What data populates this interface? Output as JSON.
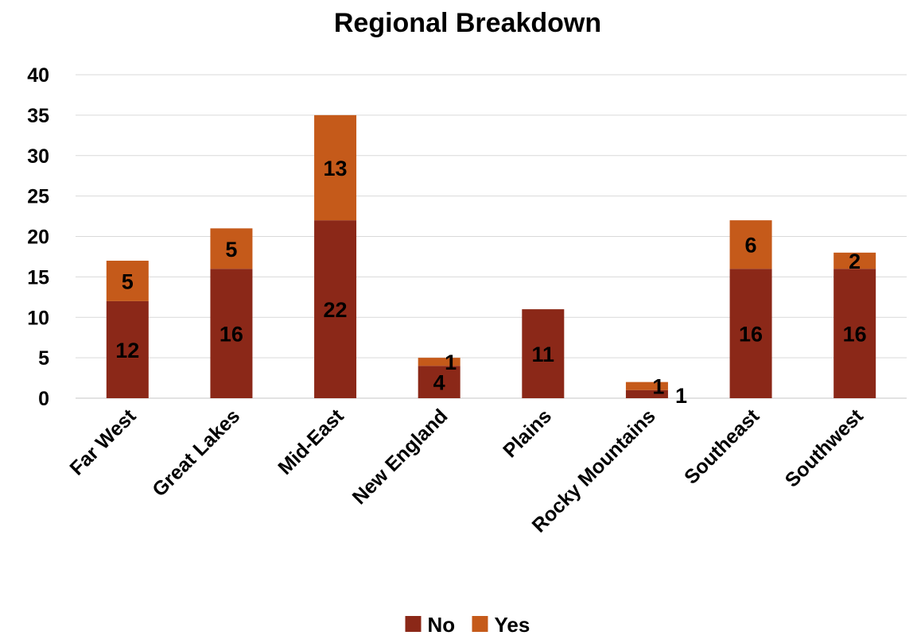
{
  "chart_data": {
    "type": "bar",
    "stacked": true,
    "title": "Regional Breakdown",
    "xlabel": "",
    "ylabel": "",
    "categories": [
      "Far West",
      "Great Lakes",
      "Mid-East",
      "New England",
      "Plains",
      "Rocky Mountains",
      "Southeast",
      "Southwest"
    ],
    "series": [
      {
        "name": "No",
        "color": "#8b2818",
        "values": [
          12,
          16,
          22,
          4,
          11,
          1,
          16,
          16
        ]
      },
      {
        "name": "Yes",
        "color": "#c55a1a",
        "values": [
          5,
          5,
          13,
          1,
          null,
          1,
          6,
          2
        ]
      }
    ],
    "ylim": [
      0,
      40
    ],
    "yticks": [
      0,
      5,
      10,
      15,
      20,
      25,
      30,
      35,
      40
    ],
    "grid": true,
    "legend_position": "bottom"
  }
}
